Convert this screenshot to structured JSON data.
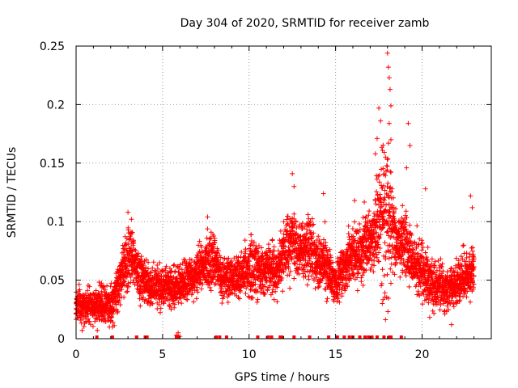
{
  "chart_data": {
    "type": "scatter",
    "title": "Day 304 of 2020, SRMTID for receiver zamb",
    "xlabel": "GPS time / hours",
    "ylabel": "SRMTID / TECUs",
    "xlim": [
      0,
      24
    ],
    "ylim": [
      0,
      0.25
    ],
    "xticks": [
      0,
      5,
      10,
      15,
      20
    ],
    "xtick_labels": [
      "0",
      "5",
      "10",
      "15",
      "20"
    ],
    "yticks": [
      0,
      0.05,
      0.1,
      0.15,
      0.2,
      0.25
    ],
    "ytick_labels": [
      "0",
      "0.05",
      "0.1",
      "0.15",
      "0.2",
      "0.25"
    ],
    "grid": true,
    "marker": "+",
    "color": "#ff0000",
    "gap_markers_x": [
      1.2,
      2.1,
      3.5,
      4.0,
      4.1,
      5.8,
      5.9,
      8.1,
      8.3,
      8.7,
      10.5,
      11.1,
      11.3,
      11.8,
      11.9,
      12.6,
      13.5,
      14.6,
      15.1,
      15.5,
      15.8,
      16.0,
      16.4,
      16.7,
      16.9,
      17.1,
      17.4,
      17.8,
      18.1,
      18.2,
      18.8
    ],
    "envelope": [
      {
        "x": 0.0,
        "base": 0.028,
        "spread": 0.009
      },
      {
        "x": 1.0,
        "base": 0.029,
        "spread": 0.01
      },
      {
        "x": 2.0,
        "base": 0.028,
        "spread": 0.012
      },
      {
        "x": 2.5,
        "base": 0.05,
        "spread": 0.012
      },
      {
        "x": 3.1,
        "base": 0.075,
        "spread": 0.018
      },
      {
        "x": 3.6,
        "base": 0.06,
        "spread": 0.015
      },
      {
        "x": 4.3,
        "base": 0.045,
        "spread": 0.012
      },
      {
        "x": 5.0,
        "base": 0.045,
        "spread": 0.012
      },
      {
        "x": 6.0,
        "base": 0.042,
        "spread": 0.013
      },
      {
        "x": 7.0,
        "base": 0.06,
        "spread": 0.015
      },
      {
        "x": 7.9,
        "base": 0.07,
        "spread": 0.016
      },
      {
        "x": 8.5,
        "base": 0.05,
        "spread": 0.012
      },
      {
        "x": 9.5,
        "base": 0.058,
        "spread": 0.014
      },
      {
        "x": 10.5,
        "base": 0.062,
        "spread": 0.015
      },
      {
        "x": 11.5,
        "base": 0.06,
        "spread": 0.016
      },
      {
        "x": 12.5,
        "base": 0.08,
        "spread": 0.02
      },
      {
        "x": 13.5,
        "base": 0.072,
        "spread": 0.018
      },
      {
        "x": 14.5,
        "base": 0.06,
        "spread": 0.016
      },
      {
        "x": 15.0,
        "base": 0.045,
        "spread": 0.012
      },
      {
        "x": 15.8,
        "base": 0.07,
        "spread": 0.016
      },
      {
        "x": 16.5,
        "base": 0.075,
        "spread": 0.018
      },
      {
        "x": 17.0,
        "base": 0.085,
        "spread": 0.02
      },
      {
        "x": 17.5,
        "base": 0.1,
        "spread": 0.03
      },
      {
        "x": 18.0,
        "base": 0.115,
        "spread": 0.04
      },
      {
        "x": 18.5,
        "base": 0.08,
        "spread": 0.02
      },
      {
        "x": 19.0,
        "base": 0.075,
        "spread": 0.02
      },
      {
        "x": 19.5,
        "base": 0.065,
        "spread": 0.016
      },
      {
        "x": 20.0,
        "base": 0.06,
        "spread": 0.016
      },
      {
        "x": 20.5,
        "base": 0.05,
        "spread": 0.014
      },
      {
        "x": 21.5,
        "base": 0.04,
        "spread": 0.012
      },
      {
        "x": 22.5,
        "base": 0.055,
        "spread": 0.014
      },
      {
        "x": 23.0,
        "base": 0.055,
        "spread": 0.015
      }
    ],
    "spikes": [
      {
        "x": 3.0,
        "y": 0.108
      },
      {
        "x": 3.2,
        "y": 0.102
      },
      {
        "x": 7.6,
        "y": 0.104
      },
      {
        "x": 12.5,
        "y": 0.141
      },
      {
        "x": 12.6,
        "y": 0.13
      },
      {
        "x": 14.3,
        "y": 0.124
      },
      {
        "x": 16.1,
        "y": 0.118
      },
      {
        "x": 17.3,
        "y": 0.158
      },
      {
        "x": 17.4,
        "y": 0.171
      },
      {
        "x": 17.5,
        "y": 0.197
      },
      {
        "x": 17.6,
        "y": 0.186
      },
      {
        "x": 18.0,
        "y": 0.244
      },
      {
        "x": 18.05,
        "y": 0.232
      },
      {
        "x": 18.1,
        "y": 0.223
      },
      {
        "x": 18.15,
        "y": 0.213
      },
      {
        "x": 18.2,
        "y": 0.199
      },
      {
        "x": 18.1,
        "y": 0.184
      },
      {
        "x": 18.2,
        "y": 0.17
      },
      {
        "x": 19.2,
        "y": 0.184
      },
      {
        "x": 19.3,
        "y": 0.165
      },
      {
        "x": 19.1,
        "y": 0.146
      },
      {
        "x": 20.2,
        "y": 0.128
      },
      {
        "x": 22.8,
        "y": 0.122
      },
      {
        "x": 22.9,
        "y": 0.112
      }
    ],
    "dips": [
      {
        "x": 5.8,
        "y": 0.003
      },
      {
        "x": 5.9,
        "y": 0.005
      },
      {
        "x": 6.0,
        "y": 0.002
      },
      {
        "x": 2.1,
        "y": 0.01
      },
      {
        "x": 17.7,
        "y": 0.03
      },
      {
        "x": 21.7,
        "y": 0.012
      }
    ]
  }
}
